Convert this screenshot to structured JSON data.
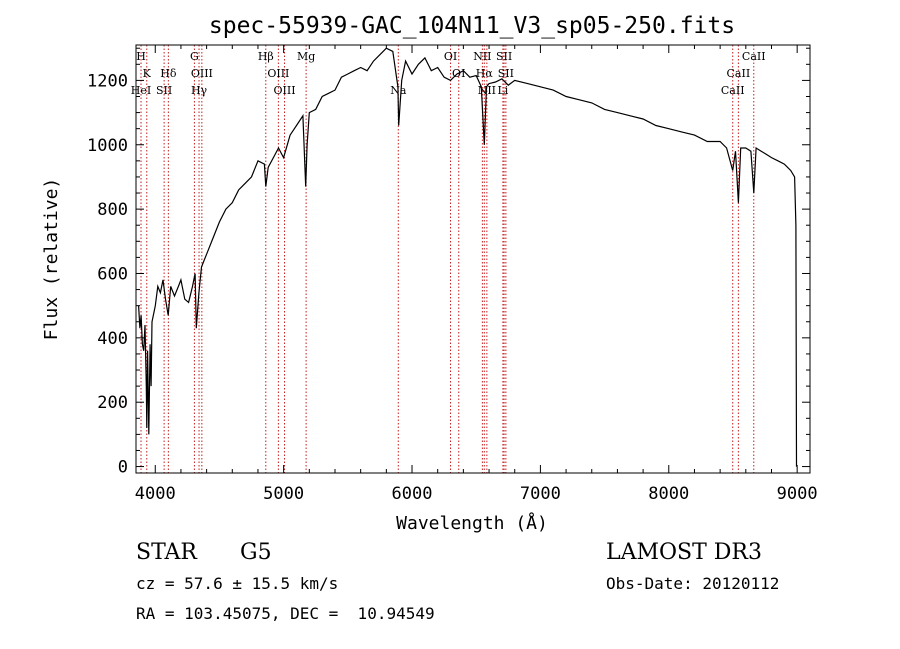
{
  "chart_data": {
    "type": "line",
    "title": "spec-55939-GAC_104N11_V3_sp05-250.fits",
    "xlabel": "Wavelength (Å)",
    "ylabel": "Flux (relative)",
    "xlim": [
      3850,
      9100
    ],
    "ylim": [
      -20,
      1310
    ],
    "xticks": [
      4000,
      5000,
      6000,
      7000,
      8000,
      9000
    ],
    "yticks": [
      0,
      200,
      400,
      600,
      800,
      1000,
      1200
    ],
    "series": [
      {
        "name": "flux",
        "x": [
          3870,
          3880,
          3890,
          3900,
          3910,
          3920,
          3930,
          3934,
          3940,
          3950,
          3960,
          3968,
          3975,
          3990,
          4000,
          4020,
          4040,
          4060,
          4080,
          4101,
          4120,
          4150,
          4180,
          4200,
          4230,
          4260,
          4290,
          4310,
          4320,
          4340,
          4360,
          4380,
          4400,
          4450,
          4500,
          4550,
          4600,
          4650,
          4700,
          4750,
          4800,
          4850,
          4861,
          4880,
          4920,
          4960,
          5000,
          5050,
          5100,
          5150,
          5172,
          5183,
          5200,
          5250,
          5300,
          5350,
          5400,
          5450,
          5500,
          5550,
          5600,
          5650,
          5700,
          5750,
          5800,
          5850,
          5890,
          5896,
          5920,
          5950,
          6000,
          6050,
          6100,
          6150,
          6200,
          6250,
          6300,
          6350,
          6400,
          6450,
          6500,
          6540,
          6563,
          6580,
          6600,
          6650,
          6700,
          6750,
          6800,
          6900,
          7000,
          7100,
          7200,
          7300,
          7400,
          7500,
          7600,
          7700,
          7800,
          7900,
          8000,
          8100,
          8200,
          8300,
          8400,
          8450,
          8498,
          8520,
          8542,
          8560,
          8600,
          8640,
          8662,
          8680,
          8720,
          8760,
          8800,
          8850,
          8900,
          8950,
          8980,
          8990,
          8995
        ],
        "values": [
          500,
          430,
          470,
          380,
          360,
          440,
          250,
          120,
          360,
          100,
          380,
          250,
          450,
          480,
          500,
          560,
          540,
          580,
          520,
          470,
          560,
          530,
          560,
          580,
          520,
          510,
          560,
          600,
          430,
          540,
          620,
          640,
          660,
          710,
          760,
          800,
          820,
          860,
          880,
          900,
          950,
          940,
          870,
          930,
          960,
          990,
          960,
          1030,
          1060,
          1090,
          870,
          1000,
          1100,
          1110,
          1150,
          1160,
          1170,
          1210,
          1220,
          1230,
          1240,
          1230,
          1260,
          1280,
          1300,
          1290,
          1180,
          1060,
          1200,
          1260,
          1220,
          1250,
          1270,
          1230,
          1240,
          1210,
          1200,
          1220,
          1230,
          1210,
          1215,
          1180,
          1000,
          1180,
          1190,
          1195,
          1205,
          1185,
          1200,
          1190,
          1180,
          1170,
          1150,
          1140,
          1130,
          1110,
          1100,
          1090,
          1080,
          1060,
          1050,
          1040,
          1030,
          1010,
          1010,
          990,
          920,
          980,
          820,
          990,
          990,
          980,
          850,
          990,
          980,
          970,
          960,
          950,
          940,
          920,
          900,
          750,
          0
        ]
      }
    ],
    "lines": [
      {
        "name": "H",
        "wave": 3889,
        "row": 0
      },
      {
        "name": "K",
        "wave": 3934,
        "row": 1
      },
      {
        "name": "HeI",
        "wave": 3889,
        "row": 2
      },
      {
        "name": "Hδ",
        "wave": 4102,
        "row": 1
      },
      {
        "name": "SII",
        "wave": 4069,
        "row": 2
      },
      {
        "name": "G",
        "wave": 4305,
        "row": 0
      },
      {
        "name": "OIII",
        "wave": 4363,
        "row": 1
      },
      {
        "name": "Hγ",
        "wave": 4341,
        "row": 2
      },
      {
        "name": "Hβ",
        "wave": 4861,
        "row": 0
      },
      {
        "name": "OIII",
        "wave": 4959,
        "row": 1
      },
      {
        "name": "OIII",
        "wave": 5007,
        "row": 2
      },
      {
        "name": "Mg",
        "wave": 5175,
        "row": 0
      },
      {
        "name": "Na",
        "wave": 5893,
        "row": 2
      },
      {
        "name": "OI",
        "wave": 6300,
        "row": 0
      },
      {
        "name": "OI",
        "wave": 6364,
        "row": 1
      },
      {
        "name": "NII",
        "wave": 6548,
        "row": 0
      },
      {
        "name": "SII",
        "wave": 6717,
        "row": 0
      },
      {
        "name": "Hα",
        "wave": 6563,
        "row": 1
      },
      {
        "name": "SII",
        "wave": 6731,
        "row": 1
      },
      {
        "name": "NII",
        "wave": 6583,
        "row": 2
      },
      {
        "name": "Li",
        "wave": 6708,
        "row": 2
      },
      {
        "name": "CaII",
        "wave": 8662,
        "row": 0
      },
      {
        "name": "CaII",
        "wave": 8542,
        "row": 1
      },
      {
        "name": "CaII",
        "wave": 8498,
        "row": 2
      }
    ],
    "line_color": "#c81e1e",
    "grid": false
  },
  "info": {
    "class": "STAR",
    "subclass": "G5",
    "cz": "cz = 57.6 ± 15.5 km/s",
    "radec": "RA = 103.45075, DEC =  10.94549",
    "survey": "LAMOST DR3",
    "obsdate": "Obs-Date: 20120112"
  }
}
